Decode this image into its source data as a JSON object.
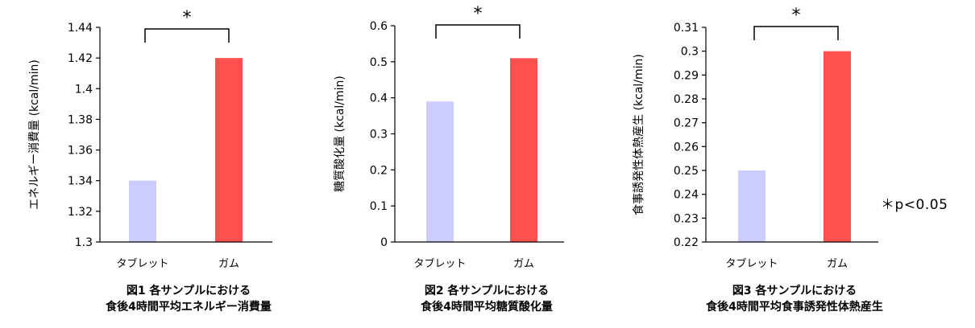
{
  "chart_data": [
    {
      "type": "bar",
      "categories": [
        "タブレット",
        "ガム"
      ],
      "values": [
        1.34,
        1.42
      ],
      "ylabel": "エネルギー消費量 (kcal/min)",
      "yticks": [
        "1.3",
        "1.32",
        "1.34",
        "1.36",
        "1.38",
        "1.4",
        "1.42",
        "1.44"
      ],
      "ylim": [
        1.3,
        1.44
      ],
      "significance": "*",
      "caption": [
        "図1 各サンプルにおける",
        "食後4時間平均エネルギー消費量"
      ],
      "colors": [
        "#ccccff",
        "#ff5050"
      ]
    },
    {
      "type": "bar",
      "categories": [
        "タブレット",
        "ガム"
      ],
      "values": [
        0.39,
        0.51
      ],
      "ylabel": "糖質酸化量 (kcal/min)",
      "yticks": [
        "0",
        "0.1",
        "0.2",
        "0.3",
        "0.4",
        "0.5",
        "0.6"
      ],
      "ylim": [
        0,
        0.6
      ],
      "significance": "*",
      "caption": [
        "図2 各サンプルにおける",
        "食後4時間平均糖質酸化量"
      ],
      "colors": [
        "#ccccff",
        "#ff5050"
      ]
    },
    {
      "type": "bar",
      "categories": [
        "タブレット",
        "ガム"
      ],
      "values": [
        0.25,
        0.3
      ],
      "ylabel": "食事誘発性体熱産生 (kcal/min)",
      "yticks": [
        "0.22",
        "0.23",
        "0.24",
        "0.25",
        "0.26",
        "0.27",
        "0.28",
        "0.29",
        "0.3",
        "0.31"
      ],
      "ylim": [
        0.22,
        0.31
      ],
      "significance": "*",
      "caption": [
        "図3 各サンプルにおける",
        "食後4時間平均食事誘発性体熱産生"
      ],
      "colors": [
        "#ccccff",
        "#ff5050"
      ]
    }
  ],
  "note": "＊p<0.05"
}
